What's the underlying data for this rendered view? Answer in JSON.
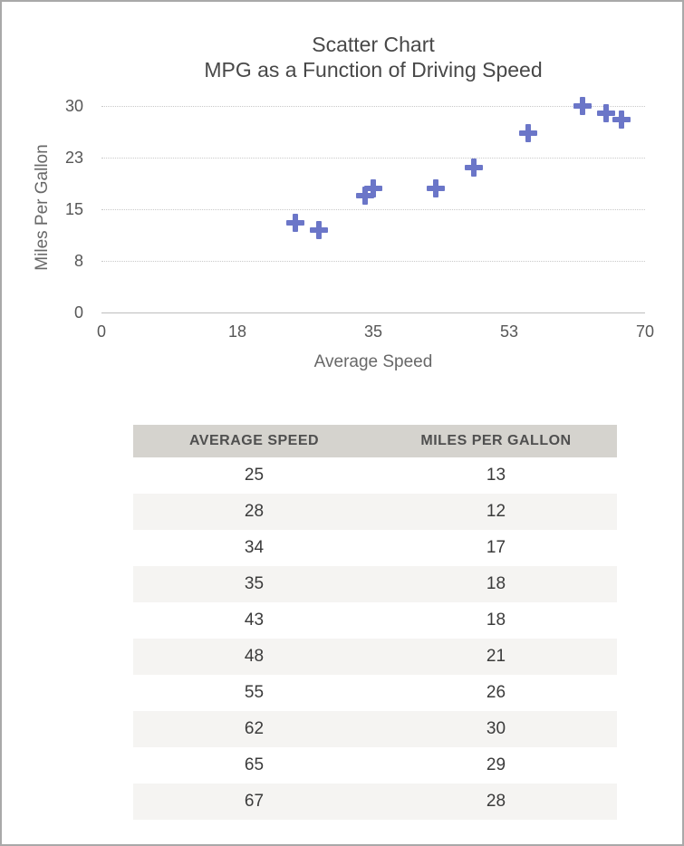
{
  "chart_data": {
    "type": "scatter",
    "title": "Scatter Chart",
    "subtitle": "MPG as a Function of Driving Speed",
    "xlabel": "Average Speed",
    "ylabel": "Miles Per Gallon",
    "xlim": [
      0,
      70
    ],
    "ylim": [
      0,
      30
    ],
    "x_ticks": {
      "values": [
        0,
        17.5,
        35,
        52.5,
        70
      ],
      "labels": [
        "0",
        "18",
        "35",
        "53",
        "70"
      ]
    },
    "y_ticks": {
      "values": [
        0,
        7.5,
        15,
        22.5,
        30
      ],
      "labels": [
        "0",
        "8",
        "15",
        "23",
        "30"
      ]
    },
    "grid": "horizontal-dotted, zero-line-solid",
    "legend": "none",
    "marker": {
      "shape": "plus",
      "color": "#6b76c8"
    },
    "points": [
      {
        "x": 25,
        "y": 13
      },
      {
        "x": 28,
        "y": 12
      },
      {
        "x": 34,
        "y": 17
      },
      {
        "x": 35,
        "y": 18
      },
      {
        "x": 43,
        "y": 18
      },
      {
        "x": 48,
        "y": 21
      },
      {
        "x": 55,
        "y": 26
      },
      {
        "x": 62,
        "y": 30
      },
      {
        "x": 65,
        "y": 29
      },
      {
        "x": 67,
        "y": 28
      }
    ]
  },
  "table": {
    "headers": [
      "AVERAGE SPEED",
      "MILES PER GALLON"
    ],
    "rows": [
      [
        "25",
        "13"
      ],
      [
        "28",
        "12"
      ],
      [
        "34",
        "17"
      ],
      [
        "35",
        "18"
      ],
      [
        "43",
        "18"
      ],
      [
        "48",
        "21"
      ],
      [
        "55",
        "26"
      ],
      [
        "62",
        "30"
      ],
      [
        "65",
        "29"
      ],
      [
        "67",
        "28"
      ]
    ]
  },
  "colors": {
    "marker": "#6b76c8",
    "gridline_dotted": "#c9c9c9",
    "axis_line": "#bdbdbd",
    "title_text": "#484848",
    "tick_text": "#565656",
    "axis_title_text": "#686868",
    "table_header_bg": "#d5d3ce",
    "table_header_text": "#4f4f4f",
    "table_alt_row_bg": "#f5f4f2",
    "table_cell_text": "#3b3b3b",
    "frame_border": "#a9a9a9"
  }
}
